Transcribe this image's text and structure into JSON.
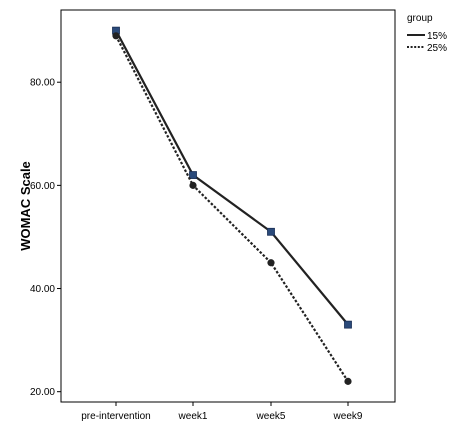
{
  "chart_data": {
    "type": "line",
    "categories": [
      "pre-intervention",
      "week1",
      "week5",
      "week9"
    ],
    "series": [
      {
        "name": "15%",
        "values": [
          90,
          62,
          51,
          33
        ],
        "line_style": "solid",
        "marker": "square",
        "marker_color": "#2a4a7a"
      },
      {
        "name": "25%",
        "values": [
          89,
          60,
          45,
          22
        ],
        "line_style": "dotted",
        "marker": "circle",
        "marker_color": "#222222"
      }
    ],
    "title": "",
    "xlabel": "",
    "ylabel": "WOMAC Scale",
    "yticks": [
      "20.00",
      "40.00",
      "60.00",
      "80.00"
    ],
    "ytick_values": [
      20,
      40,
      60,
      80
    ],
    "ylim": [
      18,
      94
    ],
    "grid": false,
    "legend": {
      "title": "group",
      "position": "top-right-outside"
    }
  }
}
